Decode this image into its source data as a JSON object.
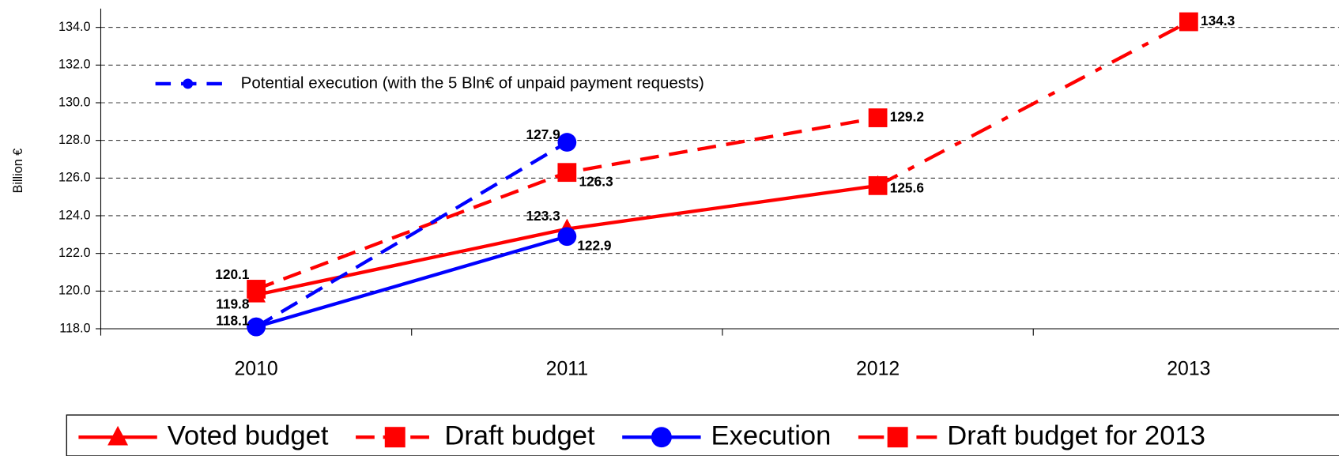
{
  "chart_data": {
    "type": "line",
    "y_label": "Billion €",
    "categories": [
      "2010",
      "2011",
      "2012",
      "2013"
    ],
    "ylim": [
      118,
      135
    ],
    "yticks": [
      {
        "value": 118,
        "label": "118.0"
      },
      {
        "value": 120,
        "label": "120.0"
      },
      {
        "value": 122,
        "label": "122.0"
      },
      {
        "value": 124,
        "label": "124.0"
      },
      {
        "value": 126,
        "label": "126.0"
      },
      {
        "value": 128,
        "label": "128.0"
      },
      {
        "value": 130,
        "label": "130.0"
      },
      {
        "value": 132,
        "label": "132.0"
      },
      {
        "value": 134,
        "label": "134.0"
      }
    ],
    "grid": true,
    "series": [
      {
        "name": "Voted budget",
        "color": "#ff0000",
        "dash": "solid",
        "marker": "triangle",
        "values": [
          119.8,
          123.3,
          125.6,
          null
        ],
        "value_labels": [
          "119.8",
          "123.3",
          null,
          null
        ]
      },
      {
        "name": "Draft budget",
        "color": "#ff0000",
        "dash": "dashed",
        "marker": "square",
        "values": [
          120.1,
          126.3,
          129.2,
          null
        ],
        "value_labels": [
          "120.1",
          "126.3",
          "129.2",
          null
        ]
      },
      {
        "name": "Execution",
        "color": "#0000ff",
        "dash": "solid",
        "marker": "circle",
        "values": [
          118.1,
          122.9,
          null,
          null
        ],
        "value_labels": [
          "118.1",
          "122.9",
          null,
          null
        ]
      },
      {
        "name": "Draft budget for 2013",
        "color": "#ff0000",
        "dash": "dashdot",
        "marker": "square",
        "values": [
          null,
          null,
          125.6,
          134.3
        ],
        "value_labels": [
          null,
          null,
          "125.6",
          "134.3"
        ]
      },
      {
        "name": "Potential execution (with the 5 Bln€ of unpaid payment requests)",
        "color": "#0000ff",
        "dash": "dashed",
        "marker": "circle",
        "legend": "upper left",
        "values": [
          118.1,
          127.9,
          null,
          null
        ],
        "value_labels": [
          null,
          "127.9",
          null,
          null
        ]
      }
    ]
  }
}
